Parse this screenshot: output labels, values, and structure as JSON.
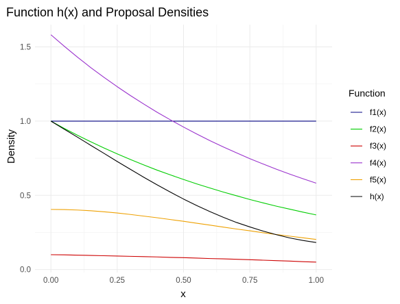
{
  "chart_data": {
    "type": "line",
    "title": "Function h(x) and Proposal Densities",
    "xlabel": "x",
    "ylabel": "Density",
    "xlim": [
      -0.06,
      1.06
    ],
    "ylim": [
      -0.02,
      1.65
    ],
    "x_ticks": [
      0.0,
      0.25,
      0.5,
      0.75,
      1.0
    ],
    "x_tick_labels": [
      "0.00",
      "0.25",
      "0.50",
      "0.75",
      "1.00"
    ],
    "y_ticks": [
      0.0,
      0.5,
      1.0,
      1.5
    ],
    "y_tick_labels": [
      "0.0",
      "0.5",
      "1.0",
      "1.5"
    ],
    "grid": true,
    "legend": {
      "title": "Function",
      "position": "right"
    },
    "x": [
      0.0,
      0.05,
      0.1,
      0.15,
      0.2,
      0.25,
      0.3,
      0.35,
      0.4,
      0.45,
      0.5,
      0.55,
      0.6,
      0.65,
      0.7,
      0.75,
      0.8,
      0.85,
      0.9,
      0.95,
      1.0
    ],
    "series": [
      {
        "name": "f1(x)",
        "color": "#000080",
        "values": [
          1.0,
          1.0,
          1.0,
          1.0,
          1.0,
          1.0,
          1.0,
          1.0,
          1.0,
          1.0,
          1.0,
          1.0,
          1.0,
          1.0,
          1.0,
          1.0,
          1.0,
          1.0,
          1.0,
          1.0,
          1.0
        ]
      },
      {
        "name": "f2(x)",
        "color": "#00cd00",
        "values": [
          1.0,
          0.951,
          0.905,
          0.861,
          0.819,
          0.779,
          0.741,
          0.705,
          0.67,
          0.638,
          0.607,
          0.577,
          0.549,
          0.522,
          0.497,
          0.472,
          0.449,
          0.427,
          0.407,
          0.387,
          0.368
        ]
      },
      {
        "name": "f3(x)",
        "color": "#cd0000",
        "values": [
          0.1,
          0.099,
          0.097,
          0.095,
          0.093,
          0.091,
          0.089,
          0.087,
          0.085,
          0.082,
          0.08,
          0.077,
          0.074,
          0.072,
          0.069,
          0.066,
          0.063,
          0.06,
          0.057,
          0.053,
          0.05
        ]
      },
      {
        "name": "f4(x)",
        "color": "#9a32cd",
        "values": [
          1.582,
          1.505,
          1.431,
          1.361,
          1.295,
          1.232,
          1.172,
          1.115,
          1.06,
          1.009,
          0.96,
          0.913,
          0.868,
          0.826,
          0.786,
          0.747,
          0.711,
          0.676,
          0.643,
          0.612,
          0.582
        ]
      },
      {
        "name": "f5(x)",
        "color": "#eea000",
        "values": [
          0.405,
          0.404,
          0.401,
          0.396,
          0.389,
          0.381,
          0.371,
          0.36,
          0.349,
          0.337,
          0.325,
          0.312,
          0.299,
          0.286,
          0.273,
          0.261,
          0.248,
          0.236,
          0.225,
          0.214,
          0.203
        ]
      },
      {
        "name": "h(x)",
        "color": "#000000",
        "values": [
          1.0,
          0.946,
          0.892,
          0.837,
          0.783,
          0.728,
          0.675,
          0.622,
          0.571,
          0.522,
          0.475,
          0.431,
          0.39,
          0.352,
          0.317,
          0.287,
          0.259,
          0.235,
          0.213,
          0.196,
          0.182
        ]
      }
    ]
  }
}
